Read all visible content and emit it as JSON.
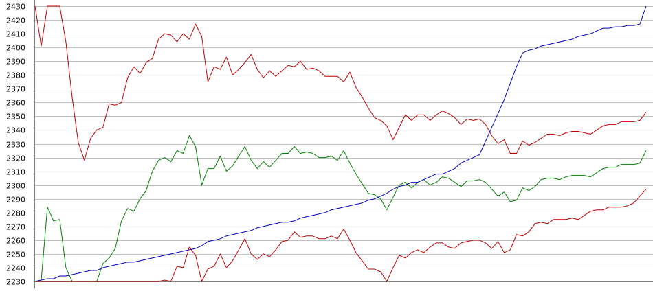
{
  "chart_data": {
    "type": "line",
    "title": "",
    "xlabel": "",
    "ylabel": "",
    "ylim": [
      2230,
      2430
    ],
    "yticks": [
      2230,
      2240,
      2250,
      2260,
      2270,
      2280,
      2290,
      2300,
      2310,
      2320,
      2330,
      2340,
      2350,
      2360,
      2370,
      2380,
      2390,
      2400,
      2410,
      2420,
      2430
    ],
    "grid": true,
    "legend": "none",
    "x_count": 100,
    "colors": {
      "grid": "#c0c0c0",
      "axis": "#808080",
      "upper_red": "#c00000",
      "green": "#008000",
      "blue": "#0000c0",
      "lower_red": "#c00000"
    },
    "series": [
      {
        "key": "upper_red",
        "values": [
          2430,
          2401,
          2430,
          2430,
          2430,
          2404,
          2364,
          2331,
          2318,
          2334,
          2340,
          2342,
          2359,
          2358,
          2360,
          2378,
          2386,
          2381,
          2389,
          2392,
          2406,
          2410,
          2409,
          2404,
          2410,
          2406,
          2417,
          2408,
          2375,
          2386,
          2384,
          2393,
          2380,
          2384,
          2389,
          2395,
          2384,
          2378,
          2383,
          2379,
          2383,
          2387,
          2386,
          2390,
          2384,
          2385,
          2383,
          2379,
          2379,
          2379,
          2375,
          2382,
          2371,
          2364,
          2356,
          2349,
          2347,
          2343,
          2333,
          2342,
          2351,
          2347,
          2351,
          2351,
          2347,
          2351,
          2354,
          2352,
          2349,
          2344,
          2348,
          2347,
          2348,
          2344,
          2336,
          2330,
          2333,
          2323,
          2323,
          2332,
          2329,
          2331,
          2334,
          2337,
          2337,
          2336,
          2338,
          2339,
          2339,
          2338,
          2337,
          2340,
          2343,
          2344,
          2344,
          2346,
          2346,
          2346,
          2347,
          2353
        ]
      },
      {
        "key": "green",
        "values": [
          2230,
          2231,
          2284,
          2274,
          2275,
          2240,
          2230,
          2230,
          2230,
          2230,
          2230,
          2243,
          2247,
          2254,
          2274,
          2283,
          2281,
          2290,
          2296,
          2310,
          2318,
          2320,
          2317,
          2325,
          2323,
          2336,
          2328,
          2300,
          2312,
          2312,
          2321,
          2310,
          2314,
          2321,
          2328,
          2318,
          2312,
          2317,
          2313,
          2318,
          2323,
          2323,
          2328,
          2323,
          2324,
          2323,
          2320,
          2320,
          2321,
          2318,
          2325,
          2316,
          2308,
          2301,
          2294,
          2293,
          2290,
          2282,
          2291,
          2300,
          2302,
          2298,
          2302,
          2304,
          2300,
          2302,
          2306,
          2305,
          2302,
          2299,
          2303,
          2303,
          2304,
          2302,
          2297,
          2292,
          2295,
          2288,
          2289,
          2298,
          2296,
          2299,
          2304,
          2305,
          2305,
          2304,
          2306,
          2307,
          2307,
          2307,
          2306,
          2309,
          2312,
          2313,
          2313,
          2315,
          2315,
          2315,
          2316,
          2325
        ]
      },
      {
        "key": "blue",
        "values": [
          2230,
          2231,
          2232,
          2232,
          2234,
          2234,
          2235,
          2236,
          2237,
          2238,
          2238,
          2240,
          2241,
          2242,
          2243,
          2244,
          2244,
          2245,
          2246,
          2247,
          2248,
          2249,
          2250,
          2251,
          2252,
          2253,
          2254,
          2256,
          2259,
          2260,
          2261,
          2263,
          2264,
          2265,
          2266,
          2267,
          2269,
          2270,
          2271,
          2272,
          2273,
          2273,
          2274,
          2276,
          2277,
          2278,
          2279,
          2280,
          2282,
          2283,
          2284,
          2285,
          2286,
          2287,
          2289,
          2290,
          2292,
          2294,
          2297,
          2299,
          2300,
          2302,
          2302,
          2304,
          2306,
          2308,
          2308,
          2310,
          2312,
          2316,
          2318,
          2320,
          2322,
          2332,
          2342,
          2352,
          2362,
          2374,
          2386,
          2396,
          2398,
          2399,
          2401,
          2402,
          2403,
          2404,
          2405,
          2406,
          2408,
          2409,
          2410,
          2412,
          2414,
          2414,
          2415,
          2415,
          2416,
          2416,
          2417,
          2430
        ]
      },
      {
        "key": "lower_red",
        "values": [
          2230,
          2230,
          2230,
          2230,
          2230,
          2230,
          2230,
          2230,
          2230,
          2230,
          2230,
          2230,
          2230,
          2230,
          2230,
          2230,
          2230,
          2230,
          2230,
          2230,
          2230,
          2231,
          2230,
          2241,
          2240,
          2255,
          2249,
          2230,
          2239,
          2241,
          2250,
          2240,
          2245,
          2253,
          2261,
          2250,
          2246,
          2250,
          2248,
          2253,
          2259,
          2260,
          2266,
          2262,
          2263,
          2263,
          2261,
          2261,
          2263,
          2261,
          2268,
          2260,
          2251,
          2245,
          2239,
          2239,
          2237,
          2230,
          2240,
          2249,
          2247,
          2251,
          2253,
          2251,
          2255,
          2258,
          2258,
          2255,
          2254,
          2258,
          2259,
          2260,
          2260,
          2258,
          2254,
          2259,
          2251,
          2253,
          2264,
          2263,
          2266,
          2272,
          2273,
          2272,
          2275,
          2275,
          2275,
          2276,
          2275,
          2278,
          2281,
          2282,
          2282,
          2284,
          2284,
          2284,
          2285,
          2287,
          2292,
          2297
        ]
      }
    ]
  }
}
